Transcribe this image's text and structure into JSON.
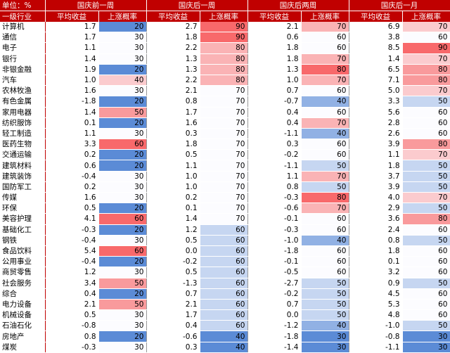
{
  "table": {
    "unit": "单位：%",
    "groups": [
      "国庆前一周",
      "国庆后一周",
      "国庆后两周",
      "国庆后一月"
    ],
    "subheaders": [
      "一级行业",
      "平均收益",
      "上涨概率",
      "平均收益",
      "上涨概率",
      "平均收益",
      "上涨概率",
      "平均收益",
      "上涨概率"
    ],
    "rows": [
      [
        "计算机",
        "1.7",
        20,
        "2.7",
        90,
        "2.1",
        70,
        "6.9",
        70
      ],
      [
        "通信",
        "1.7",
        30,
        "1.8",
        90,
        "0.6",
        60,
        "3.8",
        60
      ],
      [
        "电子",
        "1.1",
        30,
        "2.2",
        80,
        "1.8",
        60,
        "8.5",
        90
      ],
      [
        "银行",
        "1.4",
        30,
        "1.3",
        80,
        "1.8",
        70,
        "1.4",
        70
      ],
      [
        "非银金融",
        "1.9",
        20,
        "1.3",
        80,
        "1.3",
        80,
        "6.5",
        80
      ],
      [
        "汽车",
        "1.0",
        40,
        "2.2",
        80,
        "1.0",
        70,
        "7.1",
        80
      ],
      [
        "农林牧渔",
        "1.6",
        30,
        "2.1",
        70,
        "0.7",
        60,
        "5.0",
        70
      ],
      [
        "有色金属",
        "-1.8",
        20,
        "0.8",
        70,
        "-0.7",
        40,
        "3.3",
        50
      ],
      [
        "家用电器",
        "1.4",
        50,
        "1.7",
        70,
        "0.4",
        60,
        "5.6",
        60
      ],
      [
        "纺织服饰",
        "0.1",
        20,
        "1.6",
        70,
        "0.4",
        70,
        "2.8",
        60
      ],
      [
        "轻工制造",
        "1.1",
        30,
        "0.3",
        70,
        "-1.1",
        40,
        "2.6",
        60
      ],
      [
        "医药生物",
        "3.3",
        60,
        "1.8",
        70,
        "0.3",
        60,
        "3.9",
        80
      ],
      [
        "交通运输",
        "0.2",
        20,
        "0.5",
        70,
        "-0.2",
        60,
        "1.1",
        70
      ],
      [
        "建筑材料",
        "0.6",
        20,
        "1.1",
        70,
        "-1.1",
        50,
        "1.8",
        50
      ],
      [
        "建筑装饰",
        "-0.4",
        30,
        "1.0",
        70,
        "1.1",
        70,
        "3.7",
        50
      ],
      [
        "国防军工",
        "0.2",
        30,
        "1.0",
        70,
        "0.8",
        50,
        "3.9",
        50
      ],
      [
        "传媒",
        "1.6",
        30,
        "0.2",
        70,
        "-0.3",
        80,
        "4.0",
        70
      ],
      [
        "环保",
        "0.5",
        20,
        "0.1",
        70,
        "-0.6",
        70,
        "2.9",
        50
      ],
      [
        "美容护理",
        "4.1",
        60,
        "1.4",
        70,
        "-0.1",
        60,
        "3.6",
        80
      ],
      [
        "基础化工",
        "-0.3",
        20,
        "1.2",
        60,
        "-0.3",
        60,
        "2.4",
        60
      ],
      [
        "钢铁",
        "-0.4",
        30,
        "0.5",
        60,
        "-1.0",
        40,
        "0.8",
        50
      ],
      [
        "食品饮料",
        "5.4",
        60,
        "0.0",
        60,
        "-1.8",
        60,
        "1.8",
        60
      ],
      [
        "公用事业",
        "-0.4",
        20,
        "-0.2",
        60,
        "-0.1",
        60,
        "0.1",
        60
      ],
      [
        "商贸零售",
        "1.2",
        30,
        "0.5",
        60,
        "-0.5",
        60,
        "3.2",
        60
      ],
      [
        "社会服务",
        "3.4",
        50,
        "-1.3",
        60,
        "-2.7",
        50,
        "0.9",
        50
      ],
      [
        "综合",
        "0.4",
        20,
        "0.7",
        60,
        "-0.2",
        50,
        "4.5",
        60
      ],
      [
        "电力设备",
        "2.1",
        50,
        "2.1",
        60,
        "0.7",
        50,
        "5.3",
        60
      ],
      [
        "机械设备",
        "0.5",
        30,
        "1.7",
        60,
        "0.0",
        50,
        "4.8",
        60
      ],
      [
        "石油石化",
        "-0.8",
        30,
        "0.4",
        60,
        "-1.2",
        40,
        "-1.0",
        50
      ],
      [
        "房地产",
        "0.8",
        20,
        "-0.6",
        40,
        "-1.8",
        30,
        "-0.8",
        30
      ],
      [
        "煤炭",
        "-0.3",
        30,
        "0.3",
        40,
        "-1.4",
        30,
        "-1.1",
        30
      ]
    ]
  }
}
